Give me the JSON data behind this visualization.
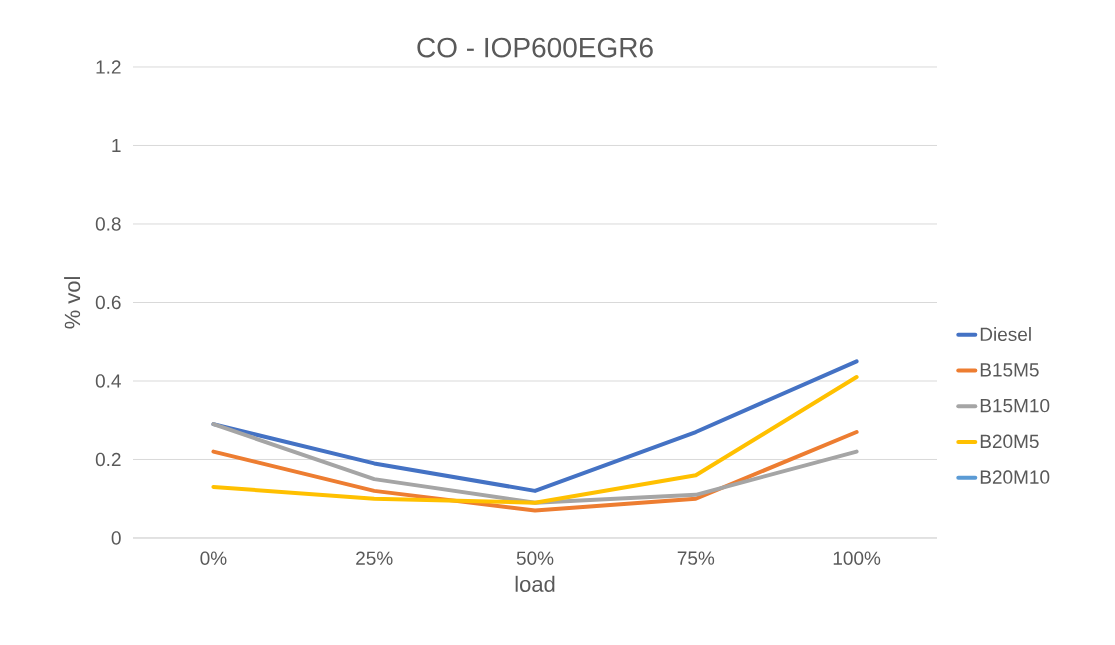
{
  "chart_data": {
    "type": "line",
    "title": "CO - IOP600EGR6",
    "xlabel": "load",
    "ylabel": "% vol",
    "categories": [
      "0%",
      "25%",
      "50%",
      "75%",
      "100%"
    ],
    "series": [
      {
        "name": "Diesel",
        "color": "#4472c4",
        "values": [
          0.29,
          0.19,
          0.12,
          0.27,
          0.45
        ]
      },
      {
        "name": "B15M5",
        "color": "#ed7d31",
        "values": [
          0.22,
          0.12,
          0.07,
          0.1,
          0.27
        ]
      },
      {
        "name": "B15M10",
        "color": "#a5a5a5",
        "values": [
          0.29,
          0.15,
          0.09,
          0.11,
          0.22
        ]
      },
      {
        "name": "B20M5",
        "color": "#ffc000",
        "values": [
          0.13,
          0.1,
          0.09,
          0.16,
          0.41
        ]
      },
      {
        "name": "B20M10",
        "color": "#5b9bd5",
        "values": [
          null,
          null,
          null,
          null,
          null
        ]
      }
    ],
    "ylim": [
      0,
      1.2
    ],
    "yticks": [
      0,
      0.2,
      0.4,
      0.6,
      0.8,
      1,
      1.2
    ],
    "grid": "y",
    "legend": "right",
    "marker": "none",
    "line_style": "solid"
  }
}
